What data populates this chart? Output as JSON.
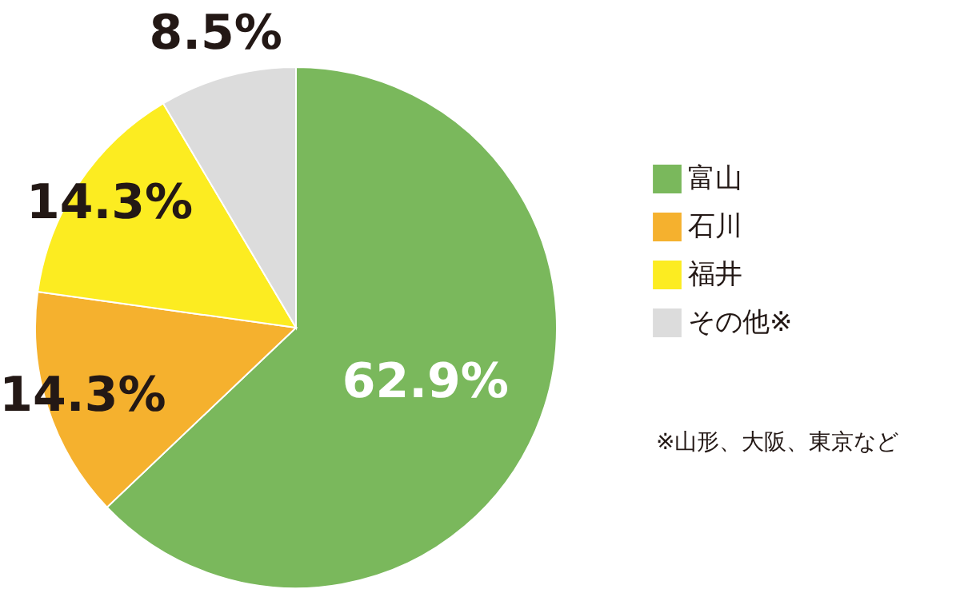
{
  "chart_data": {
    "type": "pie",
    "categories": [
      "富山",
      "石川",
      "福井",
      "その他※"
    ],
    "values": [
      62.9,
      14.3,
      14.3,
      8.5
    ],
    "colors": [
      "#7ab85c",
      "#f5b12e",
      "#fcec21",
      "#dcdcdc"
    ],
    "value_labels": [
      "62.9%",
      "14.3%",
      "14.3%",
      "8.5%"
    ],
    "legend": "right",
    "annotations": [
      "※山形、大阪、東京など"
    ]
  }
}
